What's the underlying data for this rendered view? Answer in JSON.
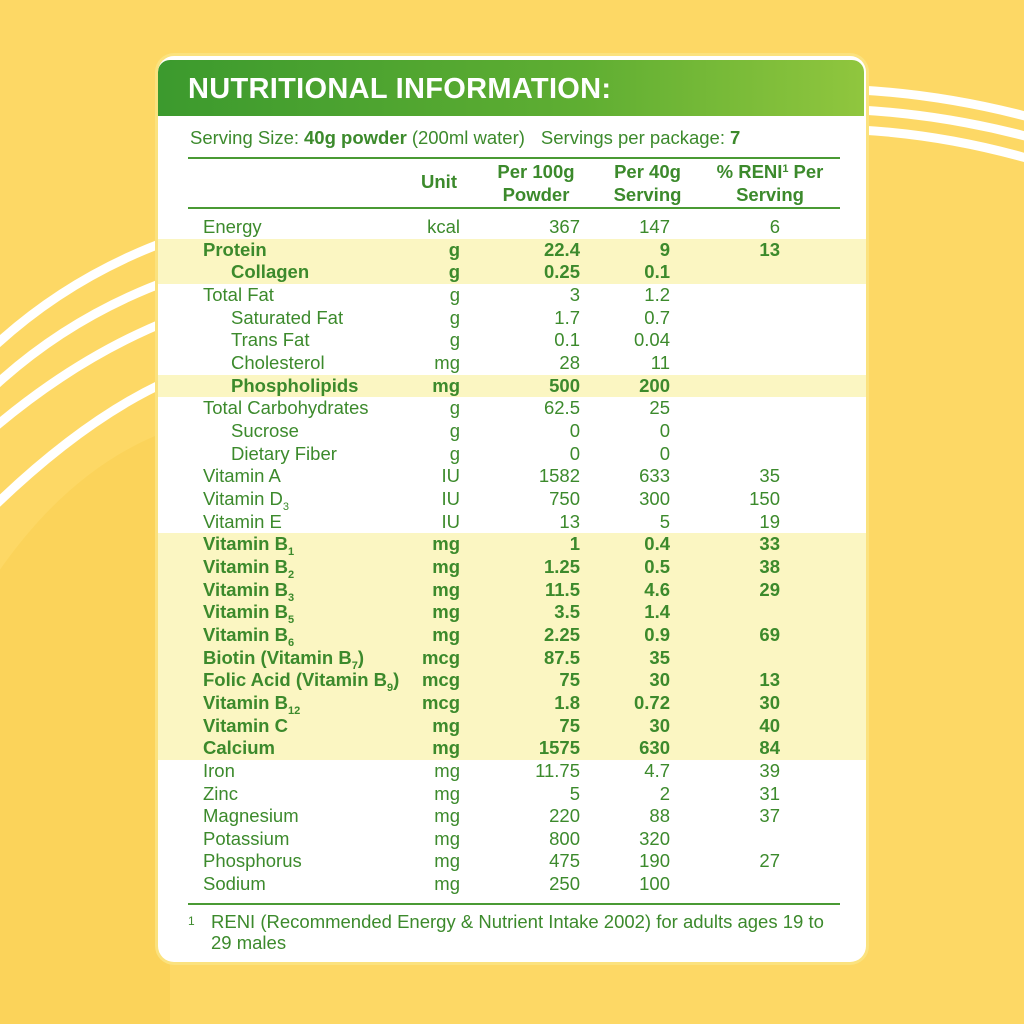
{
  "header": {
    "title": "NUTRITIONAL INFORMATION:"
  },
  "serving": {
    "serving_size_label": "Serving Size:",
    "serving_size": "40g powder",
    "water": "(200ml water)",
    "servings_label": "Servings per package:",
    "servings": "7"
  },
  "table": {
    "columns": [
      "Unit",
      "Per 100g Powder",
      "Per 40g Serving"
    ],
    "reni_column": {
      "text": "% RENI",
      "sup": "1",
      "rest": "Per Serving"
    },
    "groups": [
      {
        "highlight": false,
        "rows": [
          {
            "name": "Energy",
            "unit": "kcal",
            "per100": "367",
            "per40": "147",
            "reni": "6"
          }
        ]
      },
      {
        "highlight": true,
        "rows": [
          {
            "name": "Protein",
            "unit": "g",
            "per100": "22.4",
            "per40": "9",
            "reni": "13"
          },
          {
            "name": "Collagen",
            "sub_item": true,
            "unit": "g",
            "per100": "0.25",
            "per40": "0.1"
          }
        ]
      },
      {
        "highlight": false,
        "rows": [
          {
            "name": "Total Fat",
            "unit": "g",
            "per100": "3",
            "per40": "1.2"
          },
          {
            "name": "Saturated Fat",
            "sub_item": true,
            "unit": "g",
            "per100": "1.7",
            "per40": "0.7"
          },
          {
            "name": "Trans Fat",
            "sub_item": true,
            "unit": "g",
            "per100": "0.1",
            "per40": "0.04"
          },
          {
            "name": "Cholesterol",
            "sub_item": true,
            "unit": "mg",
            "per100": "28",
            "per40": "11"
          }
        ]
      },
      {
        "highlight": true,
        "rows": [
          {
            "name": "Phospholipids",
            "sub_item": true,
            "unit": "mg",
            "per100": "500",
            "per40": "200"
          }
        ]
      },
      {
        "highlight": false,
        "rows": [
          {
            "name": "Total Carbohydrates",
            "unit": "g",
            "per100": "62.5",
            "per40": "25"
          },
          {
            "name": "Sucrose",
            "sub_item": true,
            "unit": "g",
            "per100": "0",
            "per40": "0"
          },
          {
            "name": "Dietary Fiber",
            "sub_item": true,
            "unit": "g",
            "per100": "0",
            "per40": "0"
          },
          {
            "name": "Vitamin A",
            "unit": "IU",
            "per100": "1582",
            "per40": "633",
            "reni": "35"
          },
          {
            "name": "Vitamin D",
            "sub": "3",
            "unit": "IU",
            "per100": "750",
            "per40": "300",
            "reni": "150"
          },
          {
            "name": "Vitamin E",
            "unit": "IU",
            "per100": "13",
            "per40": "5",
            "reni": "19"
          }
        ]
      },
      {
        "highlight": true,
        "rows": [
          {
            "name": "Vitamin B",
            "sub": "1",
            "unit": "mg",
            "per100": "1",
            "per40": "0.4",
            "reni": "33"
          },
          {
            "name": "Vitamin B",
            "sub": "2",
            "unit": "mg",
            "per100": "1.25",
            "per40": "0.5",
            "reni": "38"
          },
          {
            "name": "Vitamin B",
            "sub": "3",
            "unit": "mg",
            "per100": "11.5",
            "per40": "4.6",
            "reni": "29"
          },
          {
            "name": "Vitamin B",
            "sub": "5",
            "unit": "mg",
            "per100": "3.5",
            "per40": "1.4"
          },
          {
            "name": "Vitamin B",
            "sub": "6",
            "unit": "mg",
            "per100": "2.25",
            "per40": "0.9",
            "reni": "69"
          },
          {
            "name": "Biotin (Vitamin B",
            "sub": "7",
            "suffix": ")",
            "unit": "mcg",
            "per100": "87.5",
            "per40": "35"
          },
          {
            "name": "Folic Acid (Vitamin B",
            "sub": "9",
            "suffix": ")",
            "unit": "mcg",
            "per100": "75",
            "per40": "30",
            "reni": "13"
          },
          {
            "name": "Vitamin B",
            "sub": "12",
            "unit": "mcg",
            "per100": "1.8",
            "per40": "0.72",
            "reni": "30"
          },
          {
            "name": "Vitamin C",
            "unit": "mg",
            "per100": "75",
            "per40": "30",
            "reni": "40"
          },
          {
            "name": "Calcium",
            "unit": "mg",
            "per100": "1575",
            "per40": "630",
            "reni": "84"
          }
        ]
      },
      {
        "highlight": false,
        "rows": [
          {
            "name": "Iron",
            "unit": "mg",
            "per100": "11.75",
            "per40": "4.7",
            "reni": "39"
          },
          {
            "name": "Zinc",
            "unit": "mg",
            "per100": "5",
            "per40": "2",
            "reni": "31"
          },
          {
            "name": "Magnesium",
            "unit": "mg",
            "per100": "220",
            "per40": "88",
            "reni": "37"
          },
          {
            "name": "Potassium",
            "unit": "mg",
            "per100": "800",
            "per40": "320"
          },
          {
            "name": "Phosphorus",
            "unit": "mg",
            "per100": "475",
            "per40": "190",
            "reni": "27"
          },
          {
            "name": "Sodium",
            "unit": "mg",
            "per100": "250",
            "per40": "100"
          }
        ]
      }
    ]
  },
  "footnote": {
    "mark": "1",
    "text": "RENI (Recommended Energy & Nutrient Intake 2002) for adults ages 19 to 29 males"
  }
}
